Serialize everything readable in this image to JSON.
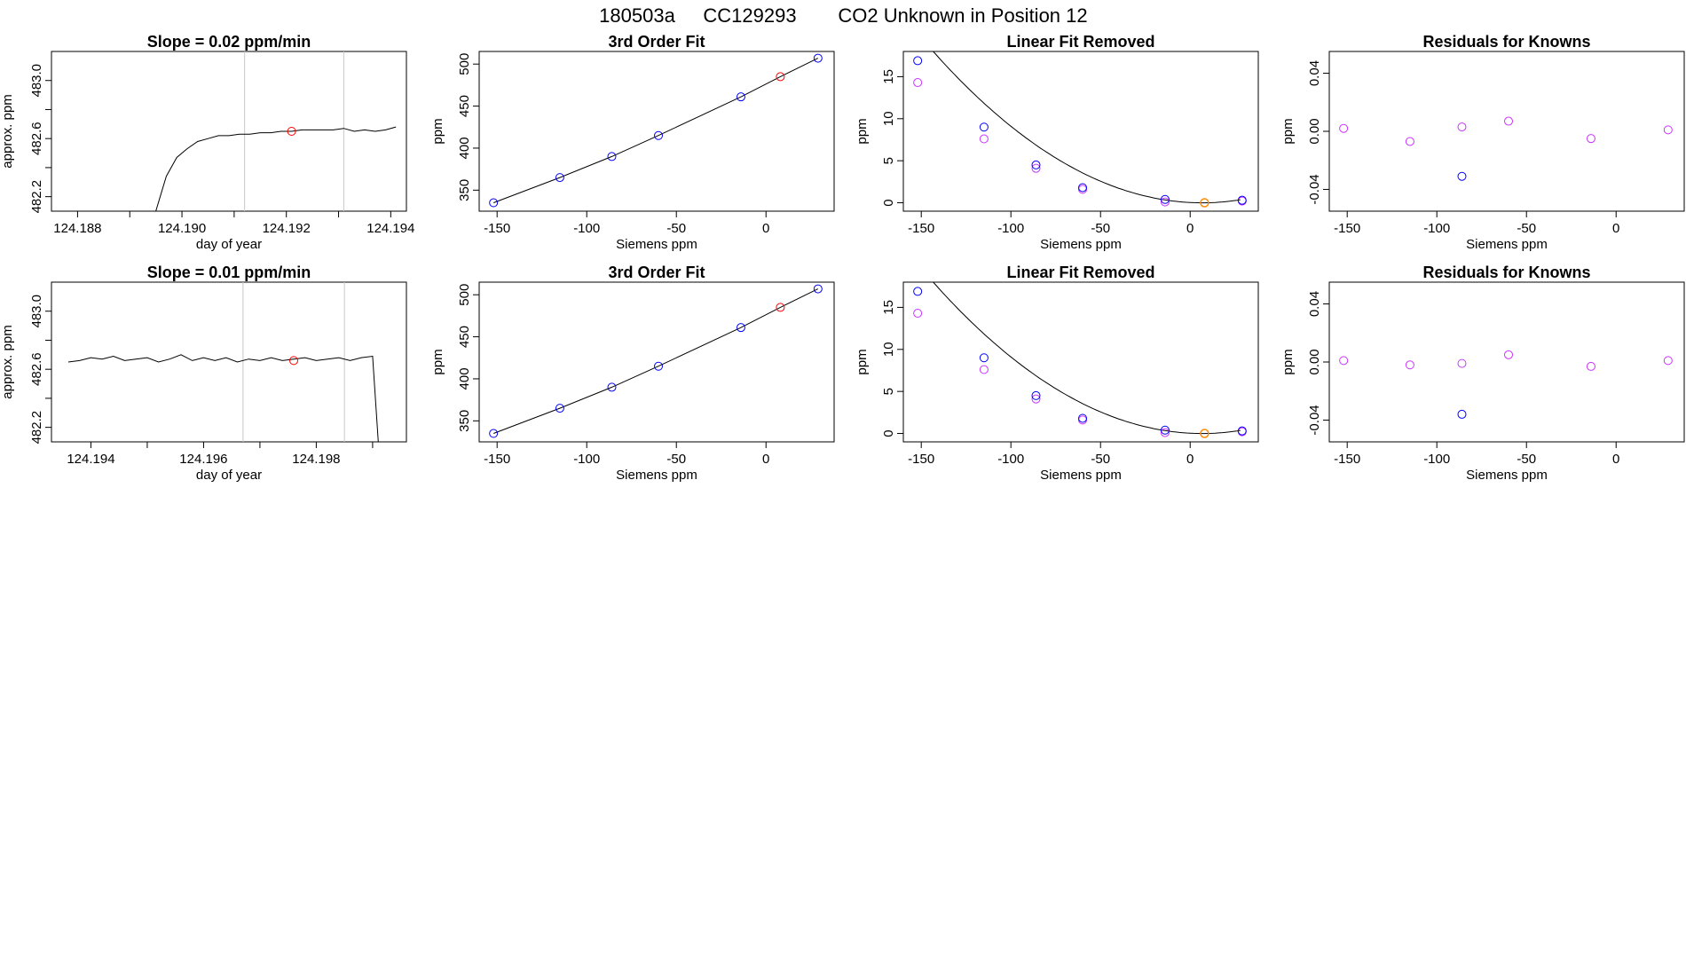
{
  "header": {
    "run_id": "180503a",
    "cylinder_id": "CC129293",
    "description": "CO2 Unknown in Position  12"
  },
  "colors": {
    "known": "#0000ff",
    "unknown": "#ff0000",
    "linear_removed_alt": "#cc33ff",
    "residual": "#cc33ff",
    "highlight": "#ff8800",
    "trace": "#000000",
    "vline": "#c8c8c8"
  },
  "chart_data": [
    {
      "type": "line",
      "title": "Slope =  0.02  ppm/min",
      "xlabel": "day of year",
      "ylabel": "approx. ppm",
      "xlim": [
        124.1875,
        124.1943
      ],
      "ylim": [
        482.1,
        483.2
      ],
      "xticks": [
        124.188,
        124.19,
        124.192,
        124.194
      ],
      "xticks_minor": [
        124.189,
        124.191,
        124.193
      ],
      "yticks": [
        482.2,
        482.6,
        483.0
      ],
      "yticks_minor": [
        482.4,
        482.8
      ],
      "vlines": [
        124.1912,
        124.1931
      ],
      "trace": {
        "x": [
          124.1895,
          124.1897,
          124.1899,
          124.1901,
          124.1903,
          124.1905,
          124.1907,
          124.1909,
          124.1911,
          124.1913,
          124.1915,
          124.1917,
          124.1919,
          124.1921,
          124.1923,
          124.1925,
          124.1927,
          124.1929,
          124.1931,
          124.1933,
          124.1935,
          124.1937,
          124.1939,
          124.1941
        ],
        "y": [
          482.1,
          482.34,
          482.47,
          482.53,
          482.58,
          482.6,
          482.62,
          482.62,
          482.63,
          482.63,
          482.64,
          482.64,
          482.65,
          482.65,
          482.66,
          482.66,
          482.66,
          482.66,
          482.67,
          482.65,
          482.66,
          482.65,
          482.66,
          482.68
        ]
      },
      "marker": {
        "x": 124.1921,
        "y": 482.65
      }
    },
    {
      "type": "scatter",
      "title": "3rd Order Fit",
      "xlabel": "Siemens ppm",
      "ylabel": "ppm",
      "xlim": [
        -160,
        38
      ],
      "ylim": [
        325,
        515
      ],
      "xticks": [
        -150,
        -100,
        -50,
        0
      ],
      "yticks": [
        350,
        400,
        450,
        500
      ],
      "knowns": {
        "x": [
          -152,
          -115,
          -86,
          -60,
          -14,
          29
        ],
        "y": [
          335,
          365,
          390,
          415,
          461,
          507
        ]
      },
      "unknown": {
        "x": 8,
        "y": 485
      },
      "fit": {
        "x": [
          -152,
          -115,
          -86,
          -60,
          -14,
          8,
          29
        ],
        "y": [
          335,
          365,
          390,
          415,
          461,
          485,
          507
        ]
      }
    },
    {
      "type": "scatter",
      "title": "Linear Fit Removed",
      "xlabel": "Siemens ppm",
      "ylabel": "ppm",
      "xlim": [
        -160,
        38
      ],
      "ylim": [
        -1,
        18
      ],
      "xticks": [
        -150,
        -100,
        -50,
        0
      ],
      "yticks": [
        0,
        5,
        10,
        15
      ],
      "knowns": {
        "x": [
          -152,
          -115,
          -86,
          -60,
          -14,
          29
        ],
        "y": [
          16.9,
          9.0,
          4.5,
          1.8,
          0.4,
          0.3
        ]
      },
      "alt": {
        "x": [
          -152,
          -115,
          -86,
          -60,
          -14,
          29
        ],
        "y": [
          14.3,
          7.6,
          4.1,
          1.6,
          0.1,
          0.2
        ]
      },
      "unknown": {
        "x": 8,
        "y": 0.0
      },
      "curve_coeffs": [
        0.0008,
        -0.0107,
        0.03
      ]
    },
    {
      "type": "scatter",
      "title": "Residuals for Knowns",
      "xlabel": "Siemens ppm",
      "ylabel": "ppm",
      "xlim": [
        -160,
        38
      ],
      "ylim": [
        -0.055,
        0.055
      ],
      "xticks": [
        -150,
        -100,
        -50,
        0
      ],
      "yticks": [
        -0.04,
        0.0,
        0.04
      ],
      "ytick_labels": [
        "-0.04",
        "0.00",
        "0.04"
      ],
      "residuals": {
        "x": [
          -152,
          -115,
          -86,
          -60,
          -14,
          29
        ],
        "y": [
          0.002,
          -0.007,
          0.003,
          0.007,
          -0.005,
          0.001
        ]
      },
      "knowns": {
        "x": [
          -86
        ],
        "y": [
          -0.031
        ]
      }
    },
    {
      "type": "line",
      "title": "Slope =  0.01  ppm/min",
      "xlabel": "day of year",
      "ylabel": "approx. ppm",
      "xlim": [
        124.1933,
        124.1996
      ],
      "ylim": [
        482.1,
        483.2
      ],
      "xticks": [
        124.194,
        124.196,
        124.198
      ],
      "xticks_minor": [
        124.195,
        124.197,
        124.199
      ],
      "yticks": [
        482.2,
        482.6,
        483.0
      ],
      "yticks_minor": [
        482.4,
        482.8
      ],
      "vlines": [
        124.1967,
        124.1985
      ],
      "trace": {
        "x": [
          124.1936,
          124.1938,
          124.194,
          124.1942,
          124.1944,
          124.1946,
          124.1948,
          124.195,
          124.1952,
          124.1954,
          124.1956,
          124.1958,
          124.196,
          124.1962,
          124.1964,
          124.1966,
          124.1968,
          124.197,
          124.1972,
          124.1974,
          124.1976,
          124.1978,
          124.198,
          124.1982,
          124.1984,
          124.1986,
          124.1988,
          124.199,
          124.1991
        ],
        "y": [
          482.65,
          482.66,
          482.68,
          482.67,
          482.69,
          482.66,
          482.67,
          482.68,
          482.65,
          482.67,
          482.7,
          482.66,
          482.68,
          482.66,
          482.68,
          482.65,
          482.67,
          482.66,
          482.68,
          482.66,
          482.67,
          482.68,
          482.66,
          482.67,
          482.68,
          482.66,
          482.68,
          482.69,
          482.1
        ]
      },
      "marker": {
        "x": 124.1976,
        "y": 482.66
      }
    },
    {
      "type": "scatter",
      "title": "3rd Order Fit",
      "xlabel": "Siemens ppm",
      "ylabel": "ppm",
      "xlim": [
        -160,
        38
      ],
      "ylim": [
        325,
        515
      ],
      "xticks": [
        -150,
        -100,
        -50,
        0
      ],
      "yticks": [
        350,
        400,
        450,
        500
      ],
      "knowns": {
        "x": [
          -152,
          -115,
          -86,
          -60,
          -14,
          29
        ],
        "y": [
          335,
          365,
          390,
          415,
          461,
          507
        ]
      },
      "unknown": {
        "x": 8,
        "y": 485
      },
      "fit": {
        "x": [
          -152,
          -115,
          -86,
          -60,
          -14,
          8,
          29
        ],
        "y": [
          335,
          365,
          390,
          415,
          461,
          485,
          507
        ]
      }
    },
    {
      "type": "scatter",
      "title": "Linear Fit Removed",
      "xlabel": "Siemens ppm",
      "ylabel": "ppm",
      "xlim": [
        -160,
        38
      ],
      "ylim": [
        -1,
        18
      ],
      "xticks": [
        -150,
        -100,
        -50,
        0
      ],
      "yticks": [
        0,
        5,
        10,
        15
      ],
      "knowns": {
        "x": [
          -152,
          -115,
          -86,
          -60,
          -14,
          29
        ],
        "y": [
          16.9,
          9.0,
          4.5,
          1.8,
          0.4,
          0.3
        ]
      },
      "alt": {
        "x": [
          -152,
          -115,
          -86,
          -60,
          -14,
          29
        ],
        "y": [
          14.3,
          7.6,
          4.1,
          1.6,
          0.1,
          0.2
        ]
      },
      "unknown": {
        "x": 8,
        "y": 0.0
      },
      "curve_coeffs": [
        0.0008,
        -0.0107,
        0.03
      ]
    },
    {
      "type": "scatter",
      "title": "Residuals for Knowns",
      "xlabel": "Siemens ppm",
      "ylabel": "ppm",
      "xlim": [
        -160,
        38
      ],
      "ylim": [
        -0.055,
        0.055
      ],
      "xticks": [
        -150,
        -100,
        -50,
        0
      ],
      "yticks": [
        -0.04,
        0.0,
        0.04
      ],
      "ytick_labels": [
        "-0.04",
        "0.00",
        "0.04"
      ],
      "residuals": {
        "x": [
          -152,
          -115,
          -86,
          -60,
          -14,
          29
        ],
        "y": [
          0.001,
          -0.002,
          -0.001,
          0.005,
          -0.003,
          0.001
        ]
      },
      "knowns": {
        "x": [
          -86
        ],
        "y": [
          -0.036
        ]
      }
    }
  ]
}
